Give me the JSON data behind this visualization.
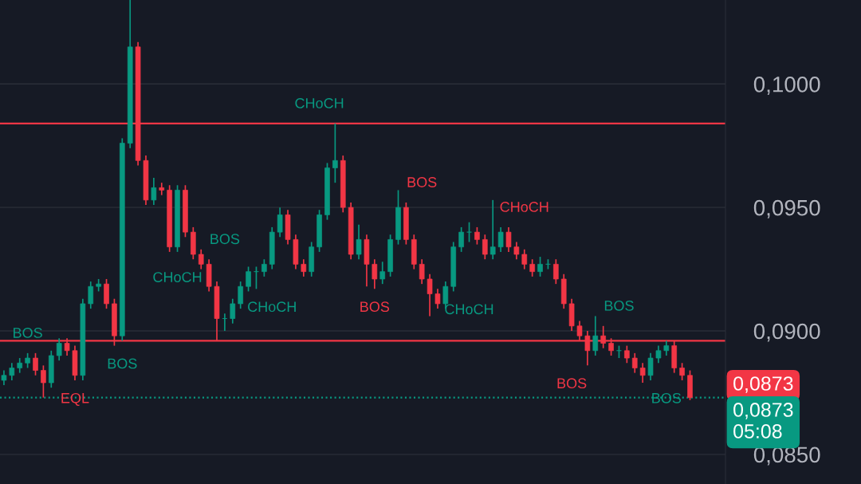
{
  "chart_data": {
    "type": "candlestick",
    "categories": [
      null,
      null,
      null,
      null,
      null,
      null,
      null,
      null,
      null,
      null,
      null,
      null,
      null,
      null,
      null,
      null,
      null,
      null,
      null,
      null,
      null,
      null,
      null,
      null,
      null,
      null,
      null,
      null,
      null,
      null,
      null,
      null,
      null,
      null,
      null,
      null,
      null,
      null,
      null,
      null,
      null,
      null,
      null,
      null,
      null,
      null,
      null,
      null,
      null,
      null,
      null,
      null,
      null,
      null,
      null,
      null,
      null,
      null,
      null,
      null,
      null,
      null,
      null,
      null,
      null,
      null,
      null,
      null,
      null,
      null,
      null,
      null,
      null,
      null,
      null,
      null,
      null,
      null,
      null,
      null,
      null,
      null,
      null,
      null,
      null,
      null,
      null,
      null
    ],
    "series": [
      {
        "colors": [
          "#089981",
          "#089981",
          "#089981",
          "#089981",
          "#f23645",
          "#f23645",
          "#089981",
          "#089981",
          "#f23645",
          "#f23645",
          "#089981",
          "#089981",
          "#089981",
          "#f23645",
          "#f23645",
          "#089981",
          "#089981",
          "#f23645",
          "#f23645",
          "#089981",
          "#f23645",
          "#f23645",
          "#089981",
          "#f23645",
          "#f23645",
          "#f23645",
          "#f23645",
          "#f23645",
          "#089981",
          "#089981",
          "#089981",
          "#089981",
          "#089981",
          "#089981",
          "#089981",
          "#089981",
          "#f23645",
          "#f23645",
          "#f23645",
          "#089981",
          "#089981",
          "#089981",
          "#089981",
          "#f23645",
          "#f23645",
          "#089981",
          "#f23645",
          "#f23645",
          "#089981",
          "#089981",
          "#089981",
          "#f23645",
          "#f23645",
          "#f23645",
          "#f23645",
          "#f23645",
          "#089981",
          "#089981",
          "#089981",
          "#089981",
          "#f23645",
          "#f23645",
          "#089981",
          "#089981",
          "#f23645",
          "#f23645",
          "#f23645",
          "#f23645",
          "#089981",
          "#089981",
          "#f23645",
          "#f23645",
          "#f23645",
          "#f23645",
          "#f23645",
          "#089981",
          "#f23645",
          "#f23645",
          "#089981",
          "#f23645",
          "#f23645",
          "#f23645",
          "#089981",
          "#089981",
          "#089981",
          "#f23645",
          "#f23645",
          "#f23645"
        ],
        "ohlc": [
          [
            0.088,
            0.0884,
            0.0878,
            0.0882
          ],
          [
            0.0882,
            0.0887,
            0.088,
            0.0885
          ],
          [
            0.0885,
            0.0889,
            0.0883,
            0.0887
          ],
          [
            0.0887,
            0.0891,
            0.0885,
            0.0889
          ],
          [
            0.0889,
            0.0891,
            0.0882,
            0.0884
          ],
          [
            0.0884,
            0.0886,
            0.0873,
            0.0879
          ],
          [
            0.0879,
            0.0892,
            0.0877,
            0.089
          ],
          [
            0.089,
            0.0897,
            0.0888,
            0.0895
          ],
          [
            0.0895,
            0.0897,
            0.089,
            0.0892
          ],
          [
            0.0892,
            0.0894,
            0.088,
            0.0882
          ],
          [
            0.0882,
            0.0913,
            0.088,
            0.0911
          ],
          [
            0.0911,
            0.092,
            0.0909,
            0.0918
          ],
          [
            0.0918,
            0.0921,
            0.0916,
            0.0919
          ],
          [
            0.0919,
            0.0921,
            0.0909,
            0.0911
          ],
          [
            0.0911,
            0.0913,
            0.0894,
            0.0898
          ],
          [
            0.0898,
            0.0978,
            0.0896,
            0.0976
          ],
          [
            0.0976,
            0.1034,
            0.0974,
            0.1015
          ],
          [
            0.1015,
            0.1017,
            0.0967,
            0.0969
          ],
          [
            0.0969,
            0.0971,
            0.0951,
            0.0953
          ],
          [
            0.0953,
            0.0962,
            0.0951,
            0.0958
          ],
          [
            0.0958,
            0.096,
            0.0955,
            0.0957
          ],
          [
            0.0957,
            0.0959,
            0.0932,
            0.0934
          ],
          [
            0.0934,
            0.0959,
            0.0932,
            0.0957
          ],
          [
            0.0957,
            0.0959,
            0.0938,
            0.094
          ],
          [
            0.094,
            0.0942,
            0.0929,
            0.0931
          ],
          [
            0.0931,
            0.0933,
            0.0925,
            0.0927
          ],
          [
            0.0927,
            0.0929,
            0.0916,
            0.0918
          ],
          [
            0.0918,
            0.092,
            0.0896,
            0.0905
          ],
          [
            0.0905,
            0.0907,
            0.09,
            0.0905
          ],
          [
            0.0905,
            0.0913,
            0.0903,
            0.0911
          ],
          [
            0.0911,
            0.092,
            0.0909,
            0.0918
          ],
          [
            0.0918,
            0.0926,
            0.0916,
            0.0924
          ],
          [
            0.0924,
            0.0926,
            0.0917,
            0.0924
          ],
          [
            0.0924,
            0.0929,
            0.0922,
            0.0927
          ],
          [
            0.0927,
            0.0942,
            0.0925,
            0.094
          ],
          [
            0.094,
            0.095,
            0.0938,
            0.0947
          ],
          [
            0.0947,
            0.0949,
            0.0935,
            0.0937
          ],
          [
            0.0937,
            0.0939,
            0.0925,
            0.0927
          ],
          [
            0.0927,
            0.0929,
            0.0922,
            0.0924
          ],
          [
            0.0924,
            0.0936,
            0.0922,
            0.0934
          ],
          [
            0.0934,
            0.0949,
            0.0932,
            0.0947
          ],
          [
            0.0947,
            0.0968,
            0.0945,
            0.0966
          ],
          [
            0.0966,
            0.0984,
            0.096,
            0.0969
          ],
          [
            0.0969,
            0.0971,
            0.0948,
            0.095
          ],
          [
            0.095,
            0.0952,
            0.0929,
            0.0931
          ],
          [
            0.0931,
            0.0943,
            0.0929,
            0.0937
          ],
          [
            0.0937,
            0.0939,
            0.0918,
            0.0927
          ],
          [
            0.0927,
            0.0929,
            0.0917,
            0.0921
          ],
          [
            0.0921,
            0.0928,
            0.0919,
            0.0924
          ],
          [
            0.0924,
            0.0939,
            0.0922,
            0.0937
          ],
          [
            0.0937,
            0.0957,
            0.0935,
            0.095
          ],
          [
            0.095,
            0.0952,
            0.0935,
            0.0937
          ],
          [
            0.0937,
            0.0939,
            0.0925,
            0.0927
          ],
          [
            0.0927,
            0.0929,
            0.0919,
            0.0921
          ],
          [
            0.0921,
            0.0923,
            0.0906,
            0.0915
          ],
          [
            0.0915,
            0.0917,
            0.0909,
            0.0911
          ],
          [
            0.0911,
            0.092,
            0.0909,
            0.0918
          ],
          [
            0.0918,
            0.0936,
            0.0916,
            0.0934
          ],
          [
            0.0934,
            0.0942,
            0.0932,
            0.094
          ],
          [
            0.094,
            0.0944,
            0.0936,
            0.094
          ],
          [
            0.094,
            0.0942,
            0.0935,
            0.0937
          ],
          [
            0.0937,
            0.0939,
            0.0929,
            0.0931
          ],
          [
            0.0931,
            0.0953,
            0.0929,
            0.0934
          ],
          [
            0.0934,
            0.0942,
            0.0932,
            0.094
          ],
          [
            0.094,
            0.0942,
            0.0932,
            0.0934
          ],
          [
            0.0934,
            0.0936,
            0.0929,
            0.0931
          ],
          [
            0.0931,
            0.0933,
            0.0925,
            0.0927
          ],
          [
            0.0927,
            0.0929,
            0.0922,
            0.0924
          ],
          [
            0.0924,
            0.093,
            0.0922,
            0.0927
          ],
          [
            0.0927,
            0.0929,
            0.0925,
            0.0927
          ],
          [
            0.0927,
            0.0929,
            0.0919,
            0.0921
          ],
          [
            0.0921,
            0.0923,
            0.0909,
            0.0911
          ],
          [
            0.0911,
            0.0913,
            0.09,
            0.0902
          ],
          [
            0.0902,
            0.0904,
            0.0896,
            0.0898
          ],
          [
            0.0898,
            0.09,
            0.0886,
            0.0892
          ],
          [
            0.0892,
            0.0906,
            0.089,
            0.0898
          ],
          [
            0.0898,
            0.0902,
            0.0893,
            0.0895
          ],
          [
            0.0895,
            0.0897,
            0.089,
            0.0892
          ],
          [
            0.0892,
            0.0894,
            0.0889,
            0.0892
          ],
          [
            0.0892,
            0.0894,
            0.0887,
            0.0889
          ],
          [
            0.0889,
            0.0891,
            0.0883,
            0.0885
          ],
          [
            0.0885,
            0.0887,
            0.0879,
            0.0882
          ],
          [
            0.0882,
            0.0891,
            0.088,
            0.0889
          ],
          [
            0.0889,
            0.0894,
            0.0887,
            0.0892
          ],
          [
            0.0892,
            0.0896,
            0.089,
            0.0894
          ],
          [
            0.0894,
            0.0896,
            0.0883,
            0.0885
          ],
          [
            0.0885,
            0.0887,
            0.088,
            0.0882
          ],
          [
            0.0882,
            0.0884,
            0.0872,
            0.0873
          ]
        ]
      }
    ],
    "ylim": [
      0.0838,
      0.1034
    ],
    "yticks": [
      {
        "value": 0.085,
        "label": "0,0850"
      },
      {
        "value": 0.09,
        "label": "0,0900"
      },
      {
        "value": 0.095,
        "label": "0,0950"
      },
      {
        "value": 0.1,
        "label": "0,1000"
      }
    ],
    "grid": "y",
    "ref_lines": [
      {
        "axis": "y",
        "value": 0.0984,
        "color": "#f23645",
        "line_style": "solid"
      },
      {
        "axis": "y",
        "value": 0.0896,
        "color": "#f23645",
        "line_style": "solid"
      },
      {
        "axis": "y",
        "value": 0.0873,
        "color": "#089981",
        "line_style": "dotted"
      }
    ],
    "annotations": [
      "BOS",
      "EQL",
      "BOS",
      "CHoCH",
      "BOS",
      "CHoCH",
      "CHoCH",
      "BOS",
      "BOS",
      "CHoCH",
      "CHoCH",
      "BOS",
      "BOS",
      "BOS",
      "0,0873",
      "0,0873\n05:08"
    ]
  }
}
